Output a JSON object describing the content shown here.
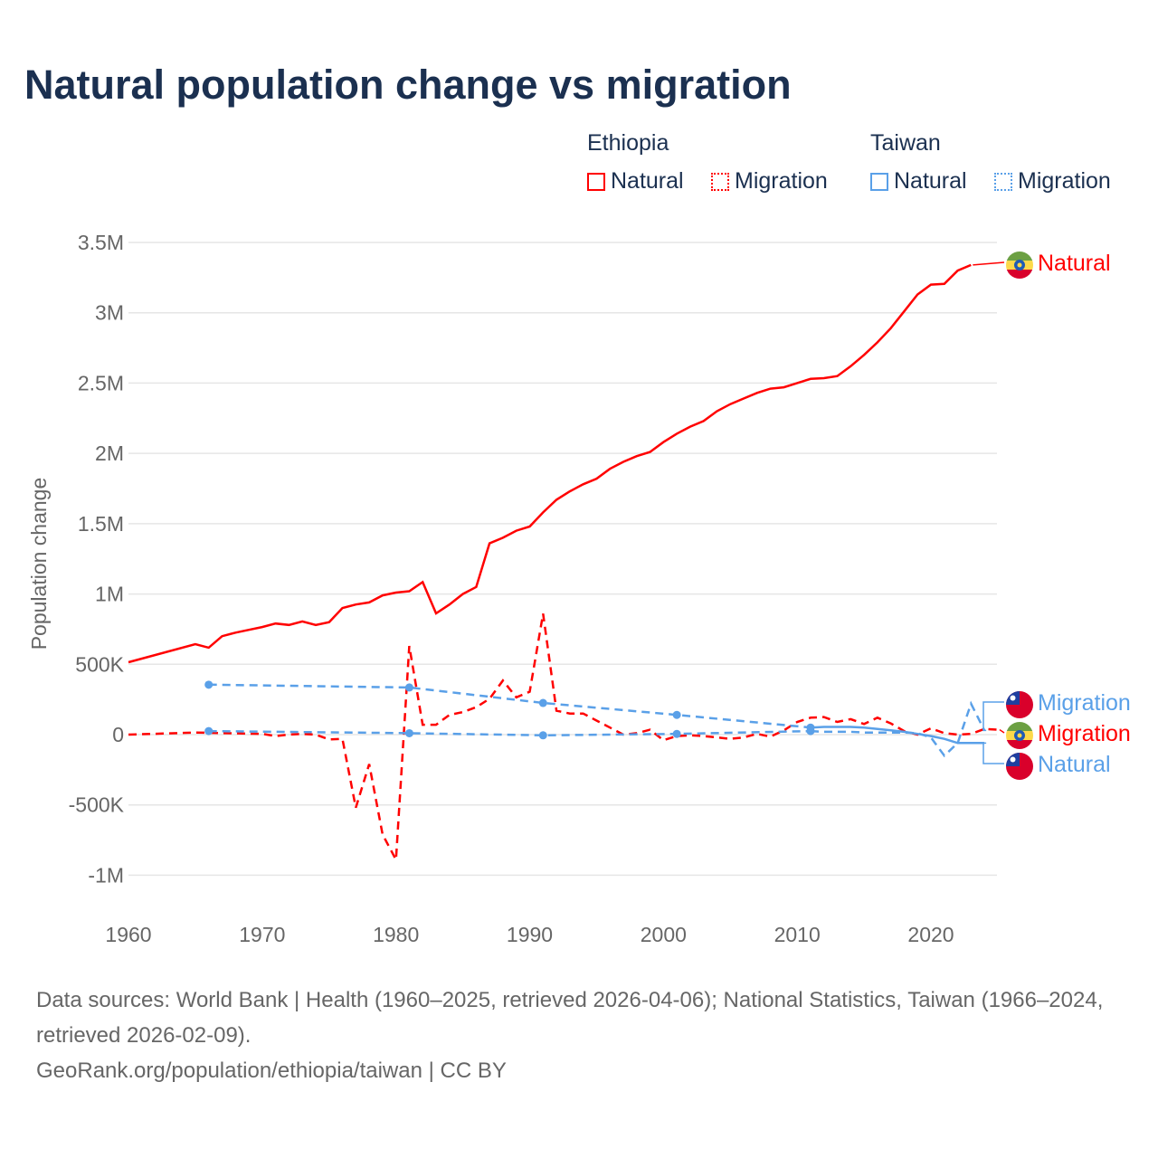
{
  "title": "Natural population change vs migration",
  "legend": {
    "groups": [
      {
        "name": "Ethiopia",
        "color": "#ff0000",
        "items": [
          "Natural",
          "Migration"
        ]
      },
      {
        "name": "Taiwan",
        "color": "#5aa0e8",
        "items": [
          "Natural",
          "Migration"
        ]
      }
    ]
  },
  "footer": {
    "sources": "Data sources: World Bank | Health (1960–2025, retrieved 2026-04-06); National Statistics, Taiwan (1966–2024, retrieved 2026-02-09).",
    "credit": "GeoRank.org/population/ethiopia/taiwan | CC BY"
  },
  "chart_data": {
    "type": "line",
    "title": "Natural population change vs migration",
    "ylabel": "Population change",
    "xlabel": "",
    "xlim": [
      1960,
      2025
    ],
    "ylim": [
      -1000000,
      3500000
    ],
    "grid": true,
    "legend_position": "top-right",
    "x_ticks": [
      1960,
      1970,
      1980,
      1990,
      2000,
      2010,
      2020
    ],
    "y_ticks": [
      {
        "value": -1000000,
        "label": "-1M"
      },
      {
        "value": -500000,
        "label": "-500K"
      },
      {
        "value": 0,
        "label": "0"
      },
      {
        "value": 500000,
        "label": "500K"
      },
      {
        "value": 1000000,
        "label": "1M"
      },
      {
        "value": 1500000,
        "label": "1.5M"
      },
      {
        "value": 2000000,
        "label": "2M"
      },
      {
        "value": 2500000,
        "label": "2.5M"
      },
      {
        "value": 3000000,
        "label": "3M"
      },
      {
        "value": 3500000,
        "label": "3.5M"
      }
    ],
    "series": [
      {
        "name": "Natural",
        "country": "Ethiopia",
        "color": "#ff0000",
        "style": "solid",
        "x": [
          1960,
          1965,
          1966,
          1967,
          1968,
          1969,
          1970,
          1971,
          1972,
          1973,
          1974,
          1975,
          1976,
          1977,
          1978,
          1979,
          1980,
          1981,
          1982,
          1983,
          1984,
          1985,
          1986,
          1987,
          1988,
          1989,
          1990,
          1991,
          1992,
          1993,
          1994,
          1995,
          1996,
          1997,
          1998,
          1999,
          2000,
          2001,
          2002,
          2003,
          2004,
          2005,
          2006,
          2007,
          2008,
          2009,
          2010,
          2011,
          2012,
          2013,
          2014,
          2015,
          2016,
          2017,
          2018,
          2019,
          2020,
          2021,
          2022,
          2023
        ],
        "y": [
          515000,
          643000,
          618000,
          700000,
          725000,
          745000,
          765000,
          790000,
          780000,
          805000,
          780000,
          800000,
          900000,
          925000,
          940000,
          990000,
          1010000,
          1020000,
          1085000,
          862000,
          925000,
          1000000,
          1050000,
          1360000,
          1400000,
          1450000,
          1480000,
          1580000,
          1670000,
          1730000,
          1780000,
          1820000,
          1890000,
          1940000,
          1980000,
          2010000,
          2080000,
          2140000,
          2190000,
          2230000,
          2300000,
          2350000,
          2390000,
          2430000,
          2460000,
          2470000,
          2500000,
          2530000,
          2535000,
          2550000,
          2620000,
          2700000,
          2790000,
          2890000,
          3010000,
          3130000,
          3200000,
          3205000,
          3300000,
          3340000
        ]
      },
      {
        "name": "Migration",
        "country": "Ethiopia",
        "color": "#ff0000",
        "style": "dashed",
        "x": [
          1960,
          1965,
          1970,
          1971,
          1972,
          1973,
          1974,
          1975,
          1976,
          1977,
          1978,
          1979,
          1980,
          1981,
          1982,
          1983,
          1984,
          1985,
          1986,
          1987,
          1988,
          1989,
          1990,
          1991,
          1992,
          1993,
          1994,
          1995,
          1996,
          1997,
          1998,
          1999,
          2000,
          2001,
          2002,
          2003,
          2004,
          2005,
          2006,
          2007,
          2008,
          2009,
          2010,
          2011,
          2012,
          2013,
          2014,
          2015,
          2016,
          2017,
          2018,
          2019,
          2020,
          2021,
          2022,
          2023,
          2024,
          2025
        ],
        "y": [
          0,
          15000,
          5000,
          -10000,
          0,
          5000,
          0,
          -35000,
          -30000,
          -520000,
          -210000,
          -710000,
          -890000,
          630000,
          70000,
          70000,
          140000,
          160000,
          195000,
          255000,
          385000,
          265000,
          305000,
          860000,
          170000,
          150000,
          150000,
          100000,
          50000,
          0,
          10000,
          35000,
          -40000,
          -10000,
          -5000,
          -10000,
          -20000,
          -30000,
          -20000,
          5000,
          -15000,
          30000,
          90000,
          120000,
          125000,
          90000,
          110000,
          75000,
          120000,
          80000,
          25000,
          0,
          45000,
          10000,
          0,
          5000,
          40000,
          35000
        ]
      },
      {
        "name": "Natural",
        "country": "Taiwan",
        "color": "#5aa0e8",
        "style": "solid",
        "x": [
          1966,
          1981,
          1991,
          2001,
          2011,
          2012,
          2013,
          2014,
          2015,
          2016,
          2017,
          2018,
          2019,
          2020,
          2021,
          2022,
          2023,
          2024
        ],
        "y": [
          355000,
          335000,
          225000,
          140000,
          50000,
          55000,
          55000,
          55000,
          50000,
          40000,
          30000,
          20000,
          5000,
          -10000,
          -30000,
          -60000,
          -60000,
          -60000
        ]
      },
      {
        "name": "Migration",
        "country": "Taiwan",
        "color": "#5aa0e8",
        "style": "dashed",
        "x": [
          1966,
          1981,
          1991,
          2001,
          2011,
          2012,
          2013,
          2014,
          2015,
          2016,
          2017,
          2018,
          2019,
          2020,
          2021,
          2022,
          2023,
          2024
        ],
        "y": [
          25000,
          10000,
          -5000,
          5000,
          25000,
          20000,
          20000,
          20000,
          15000,
          15000,
          15000,
          15000,
          10000,
          -20000,
          -150000,
          -60000,
          220000,
          30000
        ]
      }
    ],
    "end_labels": [
      {
        "text": "Natural",
        "country": "Ethiopia",
        "color": "#ff0000"
      },
      {
        "text": "Migration",
        "country": "Taiwan",
        "color": "#5aa0e8"
      },
      {
        "text": "Migration",
        "country": "Ethiopia",
        "color": "#ff0000"
      },
      {
        "text": "Natural",
        "country": "Taiwan",
        "color": "#5aa0e8"
      }
    ]
  }
}
